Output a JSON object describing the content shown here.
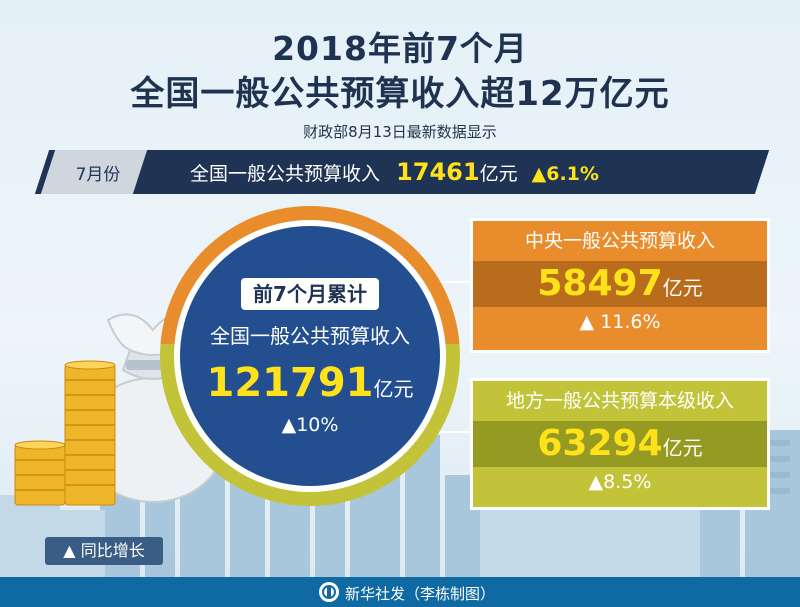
{
  "header": {
    "title_line1": "2018年前7个月",
    "title_line2": "全国一般公共预算收入超12万亿元",
    "subtitle": "财政部8月13日最新数据显示"
  },
  "july": {
    "month_label": "7月份",
    "label": "全国一般公共预算收入",
    "value": "17461",
    "unit": "亿元",
    "change": "▲6.1%"
  },
  "cumulative": {
    "tag": "前7个月累计",
    "label": "全国一般公共预算收入",
    "value": "121791",
    "unit": "亿元",
    "change": "▲10%"
  },
  "central": {
    "label": "中央一般公共预算收入",
    "value": "58497",
    "unit": "亿元",
    "change": "▲ 11.6%"
  },
  "local": {
    "label": "地方一般公共预算本级收入",
    "value": "63294",
    "unit": "亿元",
    "change": "▲8.5%"
  },
  "legend": {
    "label": "▲ 同比增长"
  },
  "footer": {
    "credit": "新华社发（李栋制图）"
  },
  "colors": {
    "navy": "#1f3354",
    "orange": "#e98d2c",
    "olive": "#c3c33a",
    "blue": "#234f90",
    "yellow": "#ffe21a",
    "footer_blue": "#0f6aa3"
  },
  "icons": [
    "money-bag-icon",
    "coin-stack-icon",
    "xinhua-logo-icon"
  ]
}
